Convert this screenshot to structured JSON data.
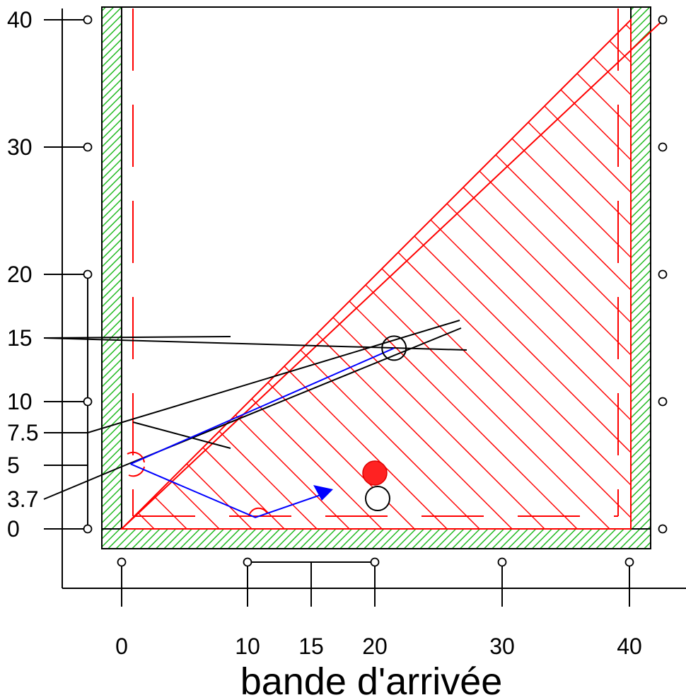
{
  "axis": {
    "y_ticks": [
      "40",
      "30",
      "20",
      "15",
      "10",
      "7.5",
      "5",
      "3.7",
      "0"
    ],
    "x_ticks": [
      "0",
      "10",
      "15",
      "20",
      "30",
      "40"
    ],
    "x_title": "bande d'arrivée"
  },
  "colors": {
    "rail_fill": "#22bb22",
    "construction": "#ff0000",
    "ball_path": "#0000ff",
    "object_ball": "#ff2222",
    "cue_ball": "#ffffff",
    "lines": "#000000"
  },
  "balls": {
    "red_ball": {
      "x": 20,
      "y": 4.5
    },
    "white_ball": {
      "x": 20,
      "y": 2.5
    },
    "ghost_ball": {
      "x": 21.4,
      "y": 14.2
    }
  },
  "ball_path": {
    "points": [
      [
        0.7,
        5.1
      ],
      [
        10.5,
        0.9
      ],
      [
        16.5,
        3.0
      ]
    ],
    "aim_line": [
      [
        0.7,
        5.1
      ],
      [
        21.4,
        14.2
      ]
    ]
  },
  "icons": {
    "diamond": "circle-marker-icon",
    "arrow": "arrow-head-icon"
  }
}
